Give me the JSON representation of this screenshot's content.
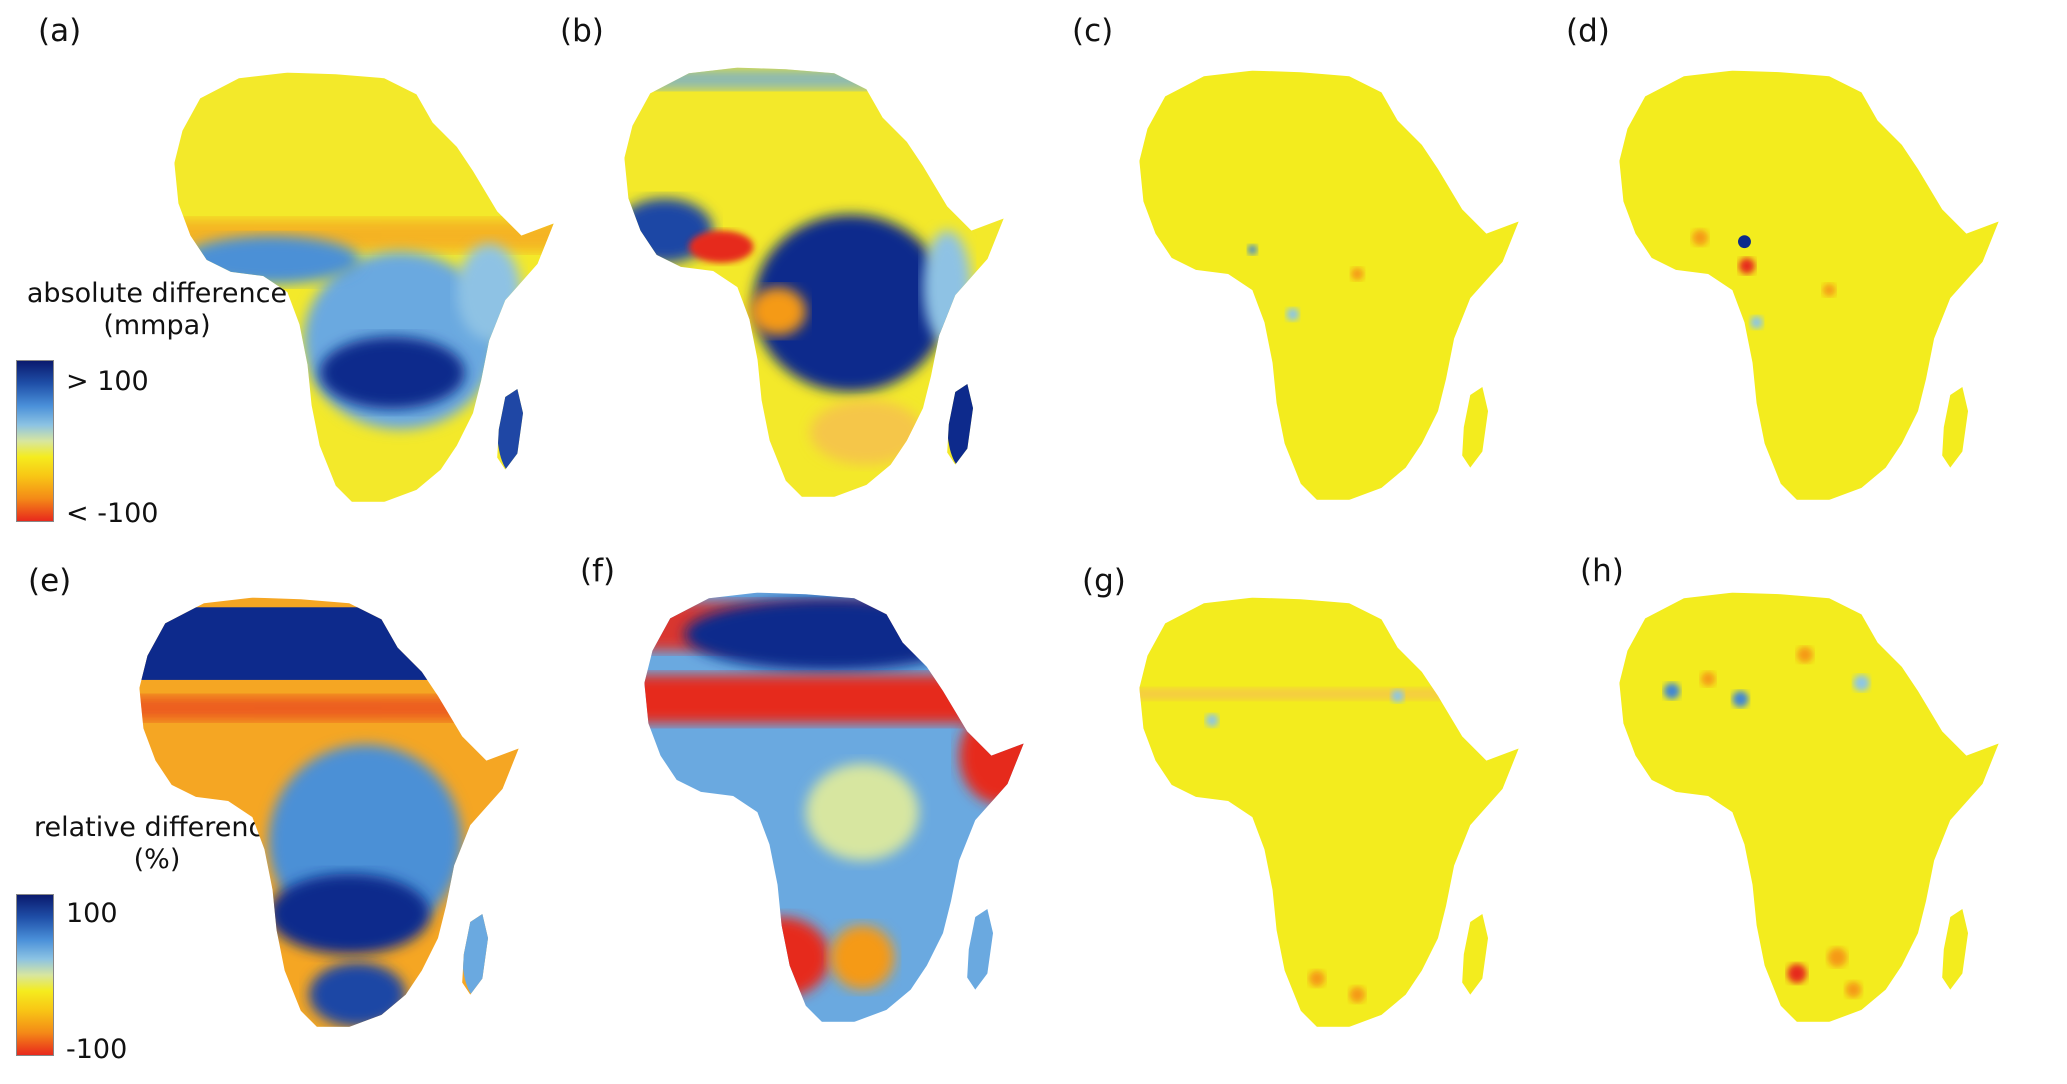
{
  "panels": [
    {
      "label": "(a)"
    },
    {
      "label": "(b)"
    },
    {
      "label": "(c)"
    },
    {
      "label": "(d)"
    },
    {
      "label": "(e)"
    },
    {
      "label": "(f)"
    },
    {
      "label": "(g)"
    },
    {
      "label": "(h)"
    }
  ],
  "legends": {
    "absolute": {
      "title_line1": "absolute difference",
      "title_line2": "(mmpa)",
      "max_label": "> 100",
      "min_label": "< -100"
    },
    "relative": {
      "title_line1": "relative difference",
      "title_line2": "(%)",
      "max_label": "100",
      "min_label": "-100"
    }
  },
  "colors": {
    "dark_blue": "#0b1f78",
    "blue": "#3f86d4",
    "light_blue": "#8cc6e6",
    "yellow": "#f4ec1c",
    "orange": "#f59a18",
    "red": "#e62a1c"
  }
}
